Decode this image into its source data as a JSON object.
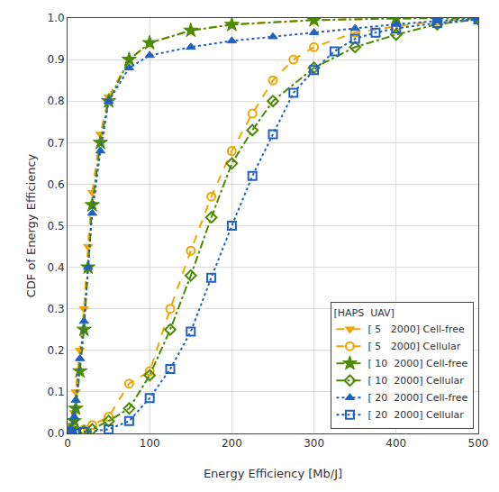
{
  "chart_data": {
    "type": "line",
    "xlabel": "Energy Efficiency [Mb/J]",
    "ylabel": "CDF of Energy Efficiency",
    "xlim": [
      0,
      500
    ],
    "ylim": [
      0,
      1
    ],
    "xticks": [
      0,
      100,
      200,
      300,
      400,
      500
    ],
    "yticks": [
      {
        "value": 0,
        "label": "0.0"
      },
      0.1,
      0.2,
      0.3,
      0.4,
      0.5,
      0.6,
      0.7,
      0.8,
      0.9,
      {
        "value": 1.0,
        "label": "1.0"
      }
    ],
    "grid": true,
    "legend": "lower right",
    "legend_title": "[HAPS  UAV]",
    "series": [
      {
        "name": "[ 5   2000] Cell-free",
        "color": "#F0A500",
        "line_style": "dashed",
        "marker": "triangle-down",
        "x": [
          0,
          2,
          5,
          8,
          10,
          15,
          20,
          25,
          30,
          40,
          50,
          75,
          100,
          150,
          200,
          300,
          400,
          500
        ],
        "values": [
          0.0,
          0.01,
          0.02,
          0.05,
          0.1,
          0.2,
          0.3,
          0.45,
          0.58,
          0.72,
          0.81,
          0.9,
          0.94,
          0.97,
          0.985,
          0.995,
          0.999,
          1.0
        ]
      },
      {
        "name": "[ 5   2000] Cellular",
        "color": "#F0A500",
        "line_style": "dashed",
        "marker": "circle-open",
        "x": [
          0,
          5,
          10,
          20,
          30,
          50,
          75,
          100,
          125,
          150,
          175,
          200,
          225,
          250,
          275,
          300,
          350,
          400,
          450,
          500
        ],
        "values": [
          0.0,
          0.0,
          0.005,
          0.01,
          0.02,
          0.04,
          0.12,
          0.15,
          0.3,
          0.44,
          0.57,
          0.68,
          0.77,
          0.85,
          0.9,
          0.93,
          0.965,
          0.98,
          0.993,
          0.998
        ]
      },
      {
        "name": "[ 10  2000] Cell-free",
        "color": "#4B8B00",
        "line_style": "dashdot",
        "marker": "star",
        "x": [
          0,
          2,
          5,
          8,
          10,
          15,
          20,
          25,
          30,
          40,
          50,
          75,
          100,
          150,
          200,
          300,
          400,
          500
        ],
        "values": [
          0.0,
          0.005,
          0.01,
          0.03,
          0.06,
          0.15,
          0.25,
          0.4,
          0.55,
          0.7,
          0.8,
          0.9,
          0.94,
          0.97,
          0.984,
          0.995,
          0.999,
          1.0
        ]
      },
      {
        "name": "[ 10  2000] Cellular",
        "color": "#4B8B00",
        "line_style": "dashdot",
        "marker": "diamond-open",
        "x": [
          0,
          5,
          10,
          20,
          30,
          50,
          75,
          100,
          125,
          150,
          175,
          200,
          225,
          250,
          300,
          350,
          400,
          450,
          500
        ],
        "values": [
          0.0,
          0.0,
          0.002,
          0.005,
          0.01,
          0.03,
          0.06,
          0.14,
          0.25,
          0.38,
          0.52,
          0.65,
          0.73,
          0.8,
          0.88,
          0.93,
          0.96,
          0.985,
          0.997
        ]
      },
      {
        "name": "[ 20  2000] Cell-free",
        "color": "#2060C0",
        "line_style": "dotted",
        "marker": "triangle-up",
        "x": [
          0,
          2,
          5,
          8,
          10,
          15,
          20,
          25,
          30,
          40,
          50,
          75,
          100,
          150,
          200,
          250,
          300,
          350,
          400,
          450,
          500
        ],
        "values": [
          0.0,
          0.005,
          0.01,
          0.04,
          0.08,
          0.18,
          0.27,
          0.4,
          0.53,
          0.68,
          0.8,
          0.88,
          0.91,
          0.93,
          0.945,
          0.955,
          0.965,
          0.975,
          0.985,
          0.993,
          0.999
        ]
      },
      {
        "name": "[ 20  2000] Cellular",
        "color": "#2060C0",
        "line_style": "dotted",
        "marker": "square-open",
        "x": [
          0,
          5,
          10,
          20,
          50,
          75,
          100,
          125,
          150,
          175,
          200,
          225,
          250,
          275,
          300,
          325,
          350,
          375,
          400,
          450,
          500
        ],
        "values": [
          0.0,
          0.0,
          0.001,
          0.003,
          0.01,
          0.03,
          0.085,
          0.155,
          0.245,
          0.375,
          0.5,
          0.62,
          0.72,
          0.82,
          0.875,
          0.92,
          0.95,
          0.965,
          0.975,
          0.988,
          0.997
        ]
      }
    ]
  }
}
